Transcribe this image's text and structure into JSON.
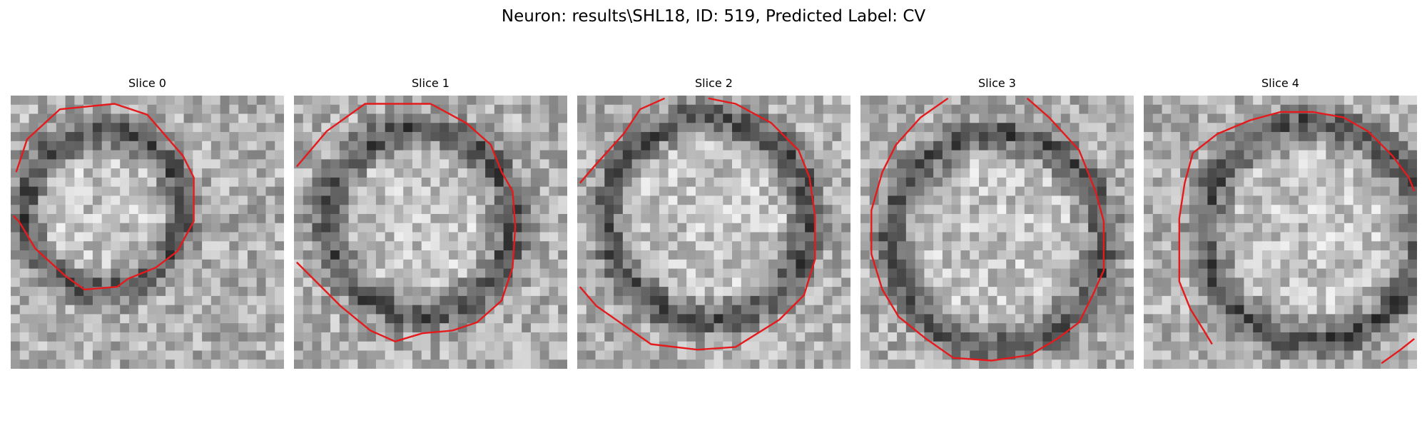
{
  "figure": {
    "title": "Neuron: results\\SHL18, ID: 519, Predicted Label: CV"
  },
  "panels": [
    {
      "title": "Slice 0"
    },
    {
      "title": "Slice 1"
    },
    {
      "title": "Slice 2"
    },
    {
      "title": "Slice 3"
    },
    {
      "title": "Slice 4"
    }
  ],
  "colors": {
    "contour": "#e41a1c",
    "background": "#ffffff"
  }
}
